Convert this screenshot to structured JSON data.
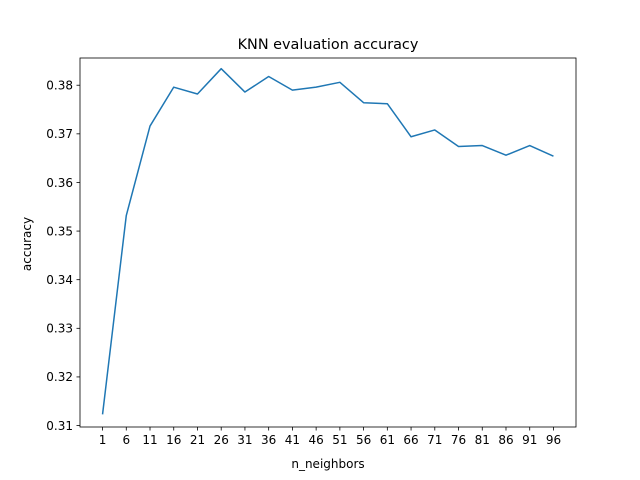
{
  "chart_data": {
    "type": "line",
    "title": "KNN evaluation accuracy",
    "xlabel": "n_neighbors",
    "ylabel": "accuracy",
    "x": [
      1,
      6,
      11,
      16,
      21,
      26,
      31,
      36,
      41,
      46,
      51,
      56,
      61,
      66,
      71,
      76,
      81,
      86,
      91,
      96
    ],
    "xticks": [
      "1",
      "6",
      "11",
      "16",
      "21",
      "26",
      "31",
      "36",
      "41",
      "46",
      "51",
      "56",
      "61",
      "66",
      "71",
      "76",
      "81",
      "86",
      "91",
      "96"
    ],
    "yticks": [
      "0.31",
      "0.32",
      "0.33",
      "0.34",
      "0.35",
      "0.36",
      "0.37",
      "0.38"
    ],
    "xlim": [
      -3.75,
      100.75
    ],
    "ylim": [
      0.3097,
      0.3856
    ],
    "series": [
      {
        "color": "#1f77b4",
        "values": [
          0.3123,
          0.3532,
          0.3716,
          0.3796,
          0.3782,
          0.3834,
          0.3786,
          0.3818,
          0.379,
          0.3796,
          0.3806,
          0.3764,
          0.3762,
          0.3694,
          0.3708,
          0.3674,
          0.3676,
          0.3656,
          0.3676,
          0.3654
        ]
      }
    ],
    "grid": false,
    "legend": "none"
  }
}
